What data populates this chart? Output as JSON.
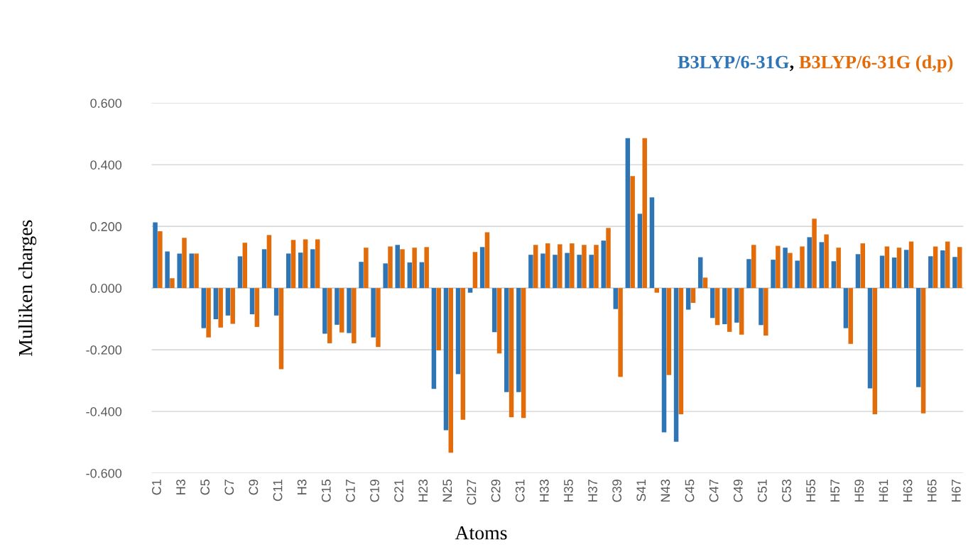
{
  "chart_data": {
    "type": "bar",
    "xlabel": "Atoms",
    "ylabel": "Mulliken charges",
    "categories": [
      "C1",
      null,
      "H3",
      null,
      "C5",
      null,
      "C7",
      null,
      "C9",
      null,
      "C11",
      null,
      "H3",
      null,
      "C15",
      null,
      "C17",
      null,
      "C19",
      null,
      "C21",
      null,
      "H23",
      null,
      "N25",
      null,
      "Cl27",
      null,
      "C29",
      null,
      "C31",
      null,
      "H33",
      null,
      "H35",
      null,
      "H37",
      null,
      "C39",
      null,
      "S41",
      null,
      "N43",
      null,
      "C45",
      null,
      "C47",
      null,
      "C49",
      null,
      "C51",
      null,
      "C53",
      null,
      "H55",
      null,
      "H57",
      null,
      "H59",
      null,
      "H61",
      null,
      "H63",
      null,
      "H65",
      null,
      "H67"
    ],
    "series": [
      {
        "name": "B3LYP/6-31G",
        "color": "#2e75b6",
        "values": [
          0.213,
          0.119,
          0.112,
          0.112,
          -0.13,
          -0.101,
          -0.089,
          0.103,
          -0.085,
          0.126,
          -0.089,
          0.112,
          0.115,
          0.126,
          -0.148,
          -0.119,
          -0.146,
          0.085,
          -0.16,
          0.08,
          0.14,
          0.083,
          0.084,
          -0.327,
          -0.461,
          -0.279,
          -0.015,
          0.133,
          -0.143,
          -0.337,
          -0.337,
          0.108,
          0.112,
          0.108,
          0.114,
          0.108,
          0.108,
          0.154,
          -0.068,
          0.486,
          0.241,
          0.294,
          -0.468,
          -0.498,
          -0.07,
          0.1,
          -0.097,
          -0.117,
          -0.112,
          0.094,
          -0.12,
          0.092,
          0.131,
          0.089,
          0.165,
          0.149,
          0.087,
          -0.13,
          0.11,
          -0.325,
          0.105,
          0.099,
          0.124,
          -0.321,
          0.103,
          0.122,
          0.101
        ]
      },
      {
        "name": "B3LYP/6-31G (d,p)",
        "color": "#e36c0a",
        "values": [
          0.184,
          0.032,
          0.163,
          0.112,
          -0.16,
          -0.128,
          -0.116,
          0.147,
          -0.126,
          0.172,
          -0.263,
          0.156,
          0.158,
          0.158,
          -0.179,
          -0.144,
          -0.179,
          0.131,
          -0.191,
          0.135,
          0.126,
          0.131,
          0.133,
          -0.202,
          -0.534,
          -0.427,
          0.117,
          0.181,
          -0.212,
          -0.419,
          -0.421,
          0.14,
          0.145,
          0.142,
          0.145,
          0.14,
          0.14,
          0.195,
          -0.288,
          0.363,
          0.486,
          -0.015,
          -0.282,
          -0.409,
          -0.048,
          0.034,
          -0.12,
          -0.142,
          -0.151,
          0.14,
          -0.154,
          0.137,
          0.114,
          0.135,
          0.225,
          0.174,
          0.131,
          -0.181,
          0.145,
          -0.409,
          0.135,
          0.131,
          0.151,
          -0.406,
          0.135,
          0.151,
          0.133
        ]
      }
    ],
    "ylim": [
      -0.6,
      0.6
    ],
    "yticks": [
      {
        "value": -0.6,
        "label": "-0.600"
      },
      {
        "value": -0.4,
        "label": "-0.400"
      },
      {
        "value": -0.2,
        "label": "-0.200"
      },
      {
        "value": 0,
        "label": "0.000"
      },
      {
        "value": 0.2,
        "label": "0.200"
      },
      {
        "value": 0.4,
        "label": "0.400"
      },
      {
        "value": 0.6,
        "label": "0.600"
      }
    ],
    "annotations": [
      ", "
    ],
    "grid": "y",
    "legend": "top right"
  }
}
